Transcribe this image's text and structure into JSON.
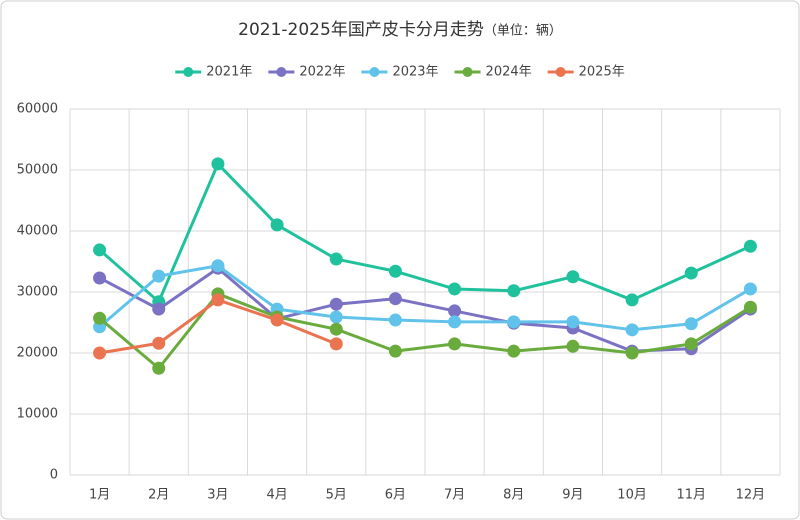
{
  "chart_data": {
    "type": "line",
    "title": "2021-2025年国产皮卡分月走势",
    "subtitle": "（单位：辆）",
    "categories": [
      "1月",
      "2月",
      "3月",
      "4月",
      "5月",
      "6月",
      "7月",
      "8月",
      "9月",
      "10月",
      "11月",
      "12月"
    ],
    "series": [
      {
        "name": "2021年",
        "color": "#1fc29d",
        "values": [
          36900,
          28400,
          51000,
          41000,
          35400,
          33400,
          30500,
          30200,
          32500,
          28700,
          33100,
          37500
        ]
      },
      {
        "name": "2022年",
        "color": "#7b72c4",
        "values": [
          32300,
          27200,
          33900,
          25600,
          28000,
          28900,
          26900,
          24900,
          24100,
          20300,
          20700,
          27200
        ]
      },
      {
        "name": "2023年",
        "color": "#62c3ea",
        "values": [
          24300,
          32600,
          34300,
          27200,
          25900,
          25400,
          25100,
          25100,
          25100,
          23800,
          24800,
          30500
        ]
      },
      {
        "name": "2024年",
        "color": "#6aab3e",
        "values": [
          25700,
          17500,
          29700,
          25900,
          23900,
          20300,
          21500,
          20300,
          21100,
          20000,
          21500,
          27500
        ]
      },
      {
        "name": "2025年",
        "color": "#ea7450",
        "values": [
          20000,
          21600,
          28700,
          25400,
          21500,
          null,
          null,
          null,
          null,
          null,
          null,
          null
        ]
      }
    ],
    "ylim": [
      0,
      60000
    ],
    "yticks": [
      0,
      10000,
      20000,
      30000,
      40000,
      50000,
      60000
    ],
    "grid": true,
    "legend": "top"
  }
}
